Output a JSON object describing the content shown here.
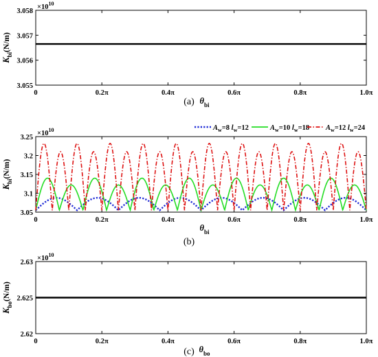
{
  "chart_data": [
    {
      "type": "line",
      "caption": "(a)",
      "multiplier": {
        "base": "×10",
        "exp": "10"
      },
      "ylabel": {
        "symbol": "K",
        "sub": "bi",
        "unit": "(N/m)"
      },
      "xlabel": {
        "symbol": "θ",
        "sub": "bi"
      },
      "ylim": [
        3.055,
        3.058
      ],
      "yticks": [
        "3.055",
        "3.056",
        "3.057",
        "3.058"
      ],
      "xlim": [
        0,
        1.0
      ],
      "xticks": [
        "0",
        "0.2π",
        "0.4π",
        "0.6π",
        "0.8π",
        "1.0π"
      ],
      "series": [
        {
          "x": [
            0,
            1.0
          ],
          "y": [
            3.05665,
            3.05665
          ],
          "color": "#000000"
        }
      ]
    },
    {
      "type": "line",
      "caption": "(b)",
      "multiplier": {
        "base": "×10",
        "exp": "10"
      },
      "ylabel": {
        "symbol": "K",
        "sub": "bi",
        "unit": "(N/m)"
      },
      "xlabel": {
        "symbol": "θ",
        "sub": "bi"
      },
      "ylim": [
        3.05,
        3.25
      ],
      "yticks": [
        "3.05",
        "3.1",
        "3.15",
        "3.2",
        "3.25"
      ],
      "xlim": [
        0,
        1.0
      ],
      "xticks": [
        "0",
        "0.2π",
        "0.4π",
        "0.6π",
        "0.8π",
        "1.0π"
      ],
      "legend_position": "top-right",
      "series": [
        {
          "name": "A_w=8 l_w=12",
          "legend": {
            "a": "A",
            "asub": "w",
            "aval": "=8",
            "l": "l",
            "lsub": "w",
            "lval": "=12"
          },
          "color": "#1f2bd6",
          "dash": "dotted",
          "teeth": 8,
          "min": 3.055,
          "max": 3.088
        },
        {
          "name": "A_w=10 l_w=18",
          "legend": {
            "a": "A",
            "asub": "w",
            "aval": "=10",
            "l": "l",
            "lsub": "w",
            "lval": "=18"
          },
          "color": "#22dd22",
          "dash": "solid",
          "teeth": 14,
          "min": 3.055,
          "max": 3.14,
          "alt_max": 3.122
        },
        {
          "name": "A_w=12 l_w=24",
          "legend": {
            "a": "A",
            "asub": "w",
            "aval": "=12",
            "l": "l",
            "lsub": "w",
            "lval": "=24"
          },
          "color": "#dd1111",
          "dash": "dashdot",
          "teeth": 20,
          "min": 3.055,
          "max": 3.232,
          "alt_max": 3.21
        }
      ]
    },
    {
      "type": "line",
      "caption": "(c)",
      "multiplier": {
        "base": "×10",
        "exp": "10"
      },
      "ylabel": {
        "symbol": "K",
        "sub": "bo",
        "unit": "(N/m)"
      },
      "xlabel": {
        "symbol": "θ",
        "sub": "bo"
      },
      "ylim": [
        2.62,
        2.63
      ],
      "yticks": [
        "2.62",
        "2.625",
        "2.63"
      ],
      "xlim": [
        0,
        1.0
      ],
      "xticks": [
        "0",
        "0.2π",
        "0.4π",
        "0.6π",
        "0.8π",
        "1.0π"
      ],
      "series": [
        {
          "x": [
            0,
            1.0
          ],
          "y": [
            2.625,
            2.625
          ],
          "color": "#000000"
        }
      ]
    }
  ]
}
